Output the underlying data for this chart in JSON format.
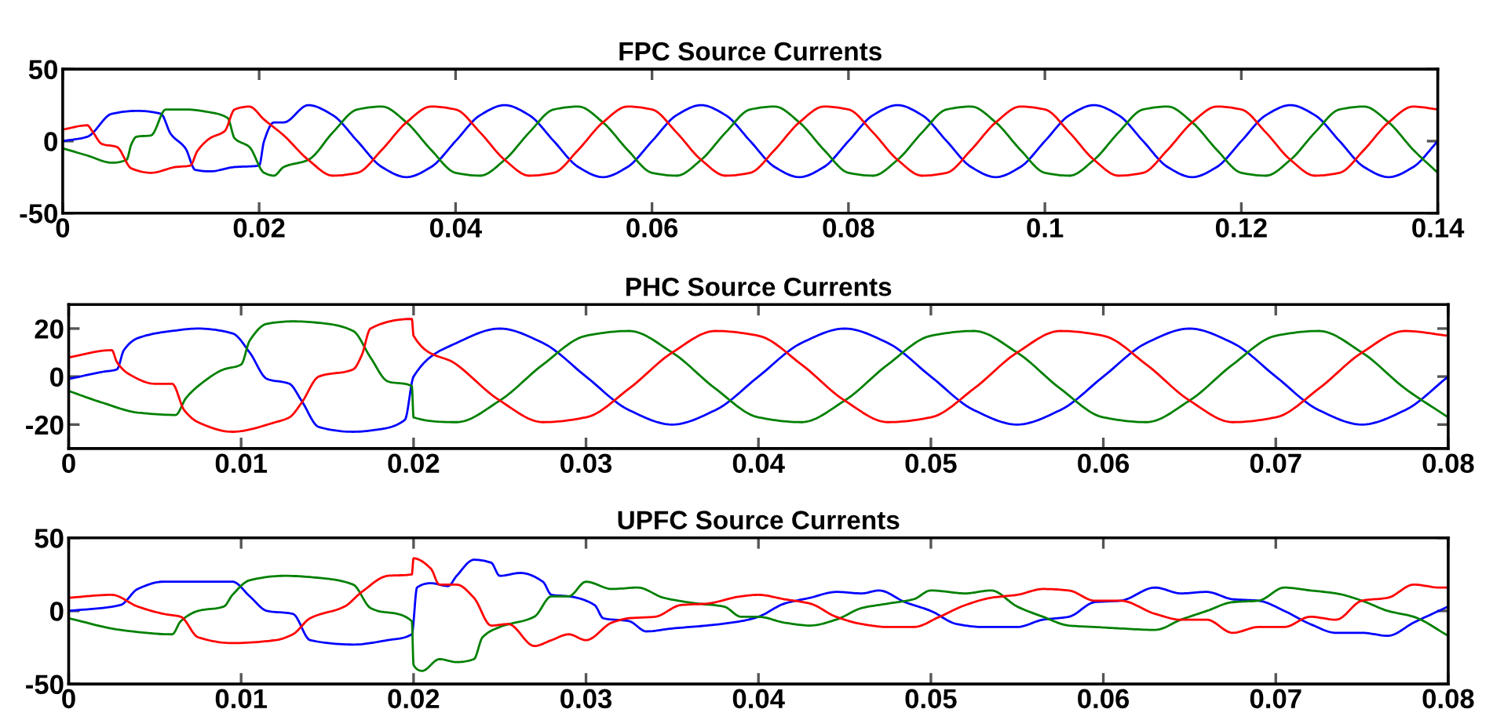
{
  "chart_data": [
    {
      "type": "line",
      "title": "FPC Source Currents",
      "xlim": [
        0,
        0.14
      ],
      "xticks": [
        0,
        0.02,
        0.04,
        0.06,
        0.08,
        0.1,
        0.12,
        0.14
      ],
      "ylim": [
        -50,
        50
      ],
      "yticks": [
        -50,
        0,
        50
      ],
      "grid": false,
      "legend": false,
      "series": [
        {
          "color": "#0000ff",
          "x": [
            0,
            0.0025,
            0.005,
            0.0075,
            0.01,
            0.011,
            0.0125,
            0.0135,
            0.015,
            0.0175,
            0.02,
            0.0205,
            0.0215,
            0.0225,
            0.025,
            0.0275,
            0.03,
            0.0325,
            0.035,
            0.0375,
            0.04,
            0.0425,
            0.045,
            0.0475,
            0.05,
            0.0525,
            0.055,
            0.0575,
            0.06,
            0.0625,
            0.065,
            0.0675,
            0.07,
            0.0725,
            0.075,
            0.0775,
            0.08,
            0.0825,
            0.085,
            0.0875,
            0.09,
            0.0925,
            0.095,
            0.0975,
            0.1,
            0.1025,
            0.105,
            0.1075,
            0.11,
            0.1125,
            0.115,
            0.1175,
            0.12,
            0.1225,
            0.125,
            0.1275,
            0.13,
            0.1325,
            0.135,
            0.1375,
            0.14
          ],
          "values": [
            0,
            3,
            19,
            21,
            19,
            5,
            -5,
            -20,
            -21,
            -18,
            -17,
            0,
            13,
            13,
            25,
            18,
            0,
            -18,
            -25,
            -18,
            0,
            18,
            25,
            18,
            0,
            -18,
            -25,
            -18,
            0,
            18,
            25,
            18,
            0,
            -18,
            -25,
            -18,
            0,
            18,
            25,
            18,
            0,
            -18,
            -25,
            -18,
            0,
            18,
            25,
            18,
            0,
            -18,
            -25,
            -18,
            0,
            18,
            25,
            18,
            0,
            -18,
            -25,
            -18,
            0
          ]
        },
        {
          "color": "#008000",
          "x": [
            0,
            0.0025,
            0.005,
            0.0065,
            0.007,
            0.0075,
            0.009,
            0.0105,
            0.0125,
            0.015,
            0.0168,
            0.0175,
            0.019,
            0.0205,
            0.0215,
            0.0225,
            0.025,
            0.0275,
            0.03,
            0.0325,
            0.035,
            0.0375,
            0.04,
            0.0425,
            0.045,
            0.0475,
            0.05,
            0.0525,
            0.055,
            0.0575,
            0.06,
            0.0625,
            0.065,
            0.0675,
            0.07,
            0.0725,
            0.075,
            0.0775,
            0.08,
            0.0825,
            0.085,
            0.0875,
            0.09,
            0.0925,
            0.095,
            0.0975,
            0.1,
            0.1025,
            0.105,
            0.1075,
            0.11,
            0.1125,
            0.115,
            0.1175,
            0.12,
            0.1225,
            0.125,
            0.1275,
            0.13,
            0.1325,
            0.135,
            0.1375,
            0.14
          ],
          "values": [
            -5,
            -10,
            -15,
            -13,
            -2,
            3,
            4,
            22,
            22,
            20,
            16,
            2,
            -4,
            -22,
            -24,
            -18,
            -13,
            6,
            22,
            24,
            13,
            -6,
            -22,
            -24,
            -13,
            6,
            22,
            24,
            13,
            -6,
            -22,
            -24,
            -13,
            6,
            22,
            24,
            13,
            -6,
            -22,
            -24,
            -13,
            6,
            22,
            24,
            13,
            -6,
            -22,
            -24,
            -13,
            6,
            22,
            24,
            13,
            -6,
            -22,
            -24,
            -13,
            6,
            22,
            24,
            13,
            -6,
            -22
          ]
        },
        {
          "color": "#ff0000",
          "x": [
            0,
            0.0025,
            0.003,
            0.004,
            0.0055,
            0.007,
            0.009,
            0.0115,
            0.013,
            0.0137,
            0.015,
            0.0165,
            0.0175,
            0.019,
            0.0205,
            0.0225,
            0.025,
            0.0275,
            0.03,
            0.0325,
            0.035,
            0.0375,
            0.04,
            0.0425,
            0.045,
            0.0475,
            0.05,
            0.0525,
            0.055,
            0.0575,
            0.06,
            0.0625,
            0.065,
            0.0675,
            0.07,
            0.0725,
            0.075,
            0.0775,
            0.08,
            0.0825,
            0.085,
            0.0875,
            0.09,
            0.0925,
            0.095,
            0.0975,
            0.1,
            0.1025,
            0.105,
            0.1075,
            0.11,
            0.1125,
            0.115,
            0.1175,
            0.12,
            0.1225,
            0.125,
            0.1275,
            0.13,
            0.1325,
            0.135,
            0.1375,
            0.14
          ],
          "values": [
            8,
            11,
            7,
            -2,
            -4,
            -19,
            -22,
            -18,
            -17,
            -7,
            2,
            7,
            22,
            24,
            15,
            4,
            -13,
            -24,
            -22,
            -6,
            13,
            24,
            22,
            6,
            -13,
            -24,
            -22,
            -6,
            13,
            24,
            22,
            6,
            -13,
            -24,
            -22,
            -6,
            13,
            24,
            22,
            6,
            -13,
            -24,
            -22,
            -6,
            13,
            24,
            22,
            6,
            -13,
            -24,
            -22,
            -6,
            13,
            24,
            22,
            6,
            -13,
            -24,
            -22,
            -6,
            13,
            24,
            22
          ]
        }
      ]
    },
    {
      "type": "line",
      "title": "PHC Source Currents",
      "xlim": [
        0,
        0.08
      ],
      "xticks": [
        0,
        0.01,
        0.02,
        0.03,
        0.04,
        0.05,
        0.06,
        0.07,
        0.08
      ],
      "ylim": [
        -30,
        30
      ],
      "yticks": [
        -20,
        0,
        20
      ],
      "grid": false,
      "legend": false,
      "series": [
        {
          "color": "#0000ff",
          "x": [
            0,
            0.002,
            0.0028,
            0.0032,
            0.004,
            0.006,
            0.0075,
            0.0095,
            0.0105,
            0.0115,
            0.0128,
            0.0135,
            0.0145,
            0.0165,
            0.018,
            0.0195,
            0.02,
            0.0225,
            0.025,
            0.0275,
            0.03,
            0.0325,
            0.035,
            0.0375,
            0.04,
            0.0425,
            0.045,
            0.0475,
            0.05,
            0.0525,
            0.055,
            0.0575,
            0.06,
            0.0625,
            0.065,
            0.0675,
            0.07,
            0.0725,
            0.075,
            0.0775,
            0.08
          ],
          "values": [
            -1,
            2,
            3,
            11,
            16,
            19,
            20,
            18,
            10,
            -1,
            -3,
            -10,
            -21,
            -23,
            -22,
            -18,
            0,
            14,
            20,
            14,
            0,
            -14,
            -20,
            -14,
            0,
            14,
            20,
            14,
            0,
            -14,
            -20,
            -14,
            0,
            14,
            20,
            14,
            0,
            -14,
            -20,
            -14,
            0
          ]
        },
        {
          "color": "#008000",
          "x": [
            0,
            0.002,
            0.004,
            0.0062,
            0.0068,
            0.0075,
            0.009,
            0.01,
            0.0105,
            0.0115,
            0.013,
            0.015,
            0.0165,
            0.0175,
            0.0185,
            0.0199,
            0.02,
            0.0225,
            0.025,
            0.0275,
            0.03,
            0.0325,
            0.035,
            0.0375,
            0.04,
            0.0425,
            0.045,
            0.0475,
            0.05,
            0.0525,
            0.055,
            0.0575,
            0.06,
            0.0625,
            0.065,
            0.0675,
            0.07,
            0.0725,
            0.075,
            0.0775,
            0.08
          ],
          "values": [
            -6,
            -11,
            -15,
            -16,
            -9,
            -4,
            3,
            5,
            15,
            22,
            23,
            22,
            19,
            8,
            -2,
            -4,
            -17,
            -19,
            -10,
            5,
            17,
            19,
            10,
            -5,
            -17,
            -19,
            -10,
            5,
            17,
            19,
            10,
            -5,
            -17,
            -19,
            -10,
            5,
            17,
            19,
            10,
            -5,
            -17
          ]
        },
        {
          "color": "#ff0000",
          "x": [
            0,
            0.0025,
            0.0028,
            0.0035,
            0.005,
            0.006,
            0.0067,
            0.0075,
            0.0095,
            0.012,
            0.0128,
            0.0135,
            0.0145,
            0.0165,
            0.017,
            0.0175,
            0.0199,
            0.02,
            0.0225,
            0.025,
            0.0275,
            0.03,
            0.0325,
            0.035,
            0.0375,
            0.04,
            0.0425,
            0.045,
            0.0475,
            0.05,
            0.0525,
            0.055,
            0.0575,
            0.06,
            0.0625,
            0.065,
            0.0675,
            0.07,
            0.0725,
            0.075,
            0.0775,
            0.08
          ],
          "values": [
            8,
            11,
            6,
            1,
            -3,
            -3,
            -14,
            -19,
            -23,
            -19,
            -17,
            -11,
            0,
            3,
            9,
            20,
            24,
            17,
            5,
            -10,
            -19,
            -17,
            -5,
            10,
            19,
            17,
            5,
            -10,
            -19,
            -17,
            -5,
            10,
            19,
            17,
            5,
            -10,
            -19,
            -17,
            -5,
            10,
            19,
            17
          ]
        }
      ]
    },
    {
      "type": "line",
      "title": "UPFC Source Currents",
      "xlim": [
        0,
        0.08
      ],
      "xticks": [
        0,
        0.01,
        0.02,
        0.03,
        0.04,
        0.05,
        0.06,
        0.07,
        0.08
      ],
      "ylim": [
        -50,
        50
      ],
      "yticks": [
        -50,
        0,
        50
      ],
      "grid": false,
      "legend": false,
      "series": [
        {
          "color": "#0000ff",
          "x": [
            0,
            0.003,
            0.004,
            0.0055,
            0.0095,
            0.0105,
            0.0115,
            0.013,
            0.014,
            0.0165,
            0.0185,
            0.0199,
            0.0202,
            0.021,
            0.022,
            0.0225,
            0.0235,
            0.0245,
            0.025,
            0.0262,
            0.0275,
            0.028,
            0.029,
            0.0305,
            0.031,
            0.0325,
            0.0335,
            0.035,
            0.037,
            0.039,
            0.04,
            0.0415,
            0.043,
            0.0445,
            0.046,
            0.047,
            0.0485,
            0.05,
            0.0515,
            0.053,
            0.055,
            0.0565,
            0.058,
            0.0595,
            0.061,
            0.063,
            0.0645,
            0.066,
            0.0675,
            0.069,
            0.0705,
            0.072,
            0.0735,
            0.075,
            0.0765,
            0.078,
            0.08
          ],
          "values": [
            0,
            4,
            15,
            20,
            20,
            10,
            0,
            -2,
            -20,
            -23,
            -20,
            -16,
            16,
            19,
            17,
            24,
            35,
            33,
            24,
            26,
            20,
            11,
            10,
            4,
            -5,
            -7,
            -14,
            -12,
            -10,
            -7,
            -4,
            5,
            9,
            13,
            12,
            14,
            6,
            0,
            -9,
            -11,
            -11,
            -6,
            -4,
            6,
            7,
            16,
            12,
            13,
            8,
            7,
            0,
            -9,
            -15,
            -15,
            -17,
            -8,
            3
          ]
        },
        {
          "color": "#008000",
          "x": [
            0,
            0.003,
            0.006,
            0.0065,
            0.0075,
            0.009,
            0.0095,
            0.0105,
            0.0125,
            0.015,
            0.0165,
            0.0175,
            0.0199,
            0.02,
            0.0205,
            0.0215,
            0.0225,
            0.0235,
            0.024,
            0.025,
            0.027,
            0.028,
            0.029,
            0.03,
            0.0315,
            0.033,
            0.0345,
            0.0365,
            0.038,
            0.039,
            0.04,
            0.0415,
            0.043,
            0.0445,
            0.046,
            0.0475,
            0.049,
            0.05,
            0.052,
            0.0535,
            0.055,
            0.0565,
            0.058,
            0.0595,
            0.061,
            0.063,
            0.0645,
            0.066,
            0.0675,
            0.069,
            0.0705,
            0.072,
            0.0735,
            0.075,
            0.0765,
            0.078,
            0.08
          ],
          "values": [
            -5,
            -13,
            -16,
            -7,
            0,
            3,
            11,
            21,
            24,
            22,
            18,
            2,
            -7,
            -37,
            -41,
            -33,
            -35,
            -33,
            -18,
            -11,
            -4,
            10,
            10,
            20,
            15,
            16,
            9,
            5,
            3,
            -4,
            -4,
            -8,
            -10,
            -6,
            2,
            5,
            8,
            14,
            12,
            14,
            3,
            -4,
            -10,
            -11,
            -12,
            -13,
            -6,
            0,
            6,
            7,
            16,
            14,
            12,
            7,
            0,
            -4,
            -17
          ]
        },
        {
          "color": "#ff0000",
          "x": [
            0,
            0.0025,
            0.004,
            0.0055,
            0.0065,
            0.0075,
            0.0095,
            0.012,
            0.013,
            0.014,
            0.016,
            0.017,
            0.0185,
            0.0199,
            0.02,
            0.021,
            0.0215,
            0.0225,
            0.0235,
            0.0245,
            0.0255,
            0.027,
            0.028,
            0.029,
            0.03,
            0.0315,
            0.0325,
            0.034,
            0.0355,
            0.037,
            0.039,
            0.04,
            0.0415,
            0.043,
            0.0445,
            0.046,
            0.0475,
            0.049,
            0.0505,
            0.052,
            0.0535,
            0.055,
            0.0565,
            0.058,
            0.0595,
            0.061,
            0.063,
            0.0645,
            0.066,
            0.0675,
            0.069,
            0.0705,
            0.072,
            0.0735,
            0.075,
            0.0765,
            0.078,
            0.0795,
            0.08
          ],
          "values": [
            9,
            11,
            3,
            -2,
            -4,
            -18,
            -22,
            -20,
            -16,
            -5,
            3,
            13,
            24,
            25,
            36,
            29,
            18,
            18,
            9,
            -10,
            -9,
            -24,
            -20,
            -16,
            -20,
            -8,
            -5,
            -4,
            4,
            5,
            10,
            11,
            8,
            5,
            -4,
            -9,
            -11,
            -11,
            -4,
            4,
            9,
            11,
            15,
            14,
            7,
            7,
            -2,
            -6,
            -6,
            -15,
            -11,
            -11,
            -4,
            -6,
            7,
            9,
            18,
            16,
            16
          ]
        }
      ]
    }
  ]
}
